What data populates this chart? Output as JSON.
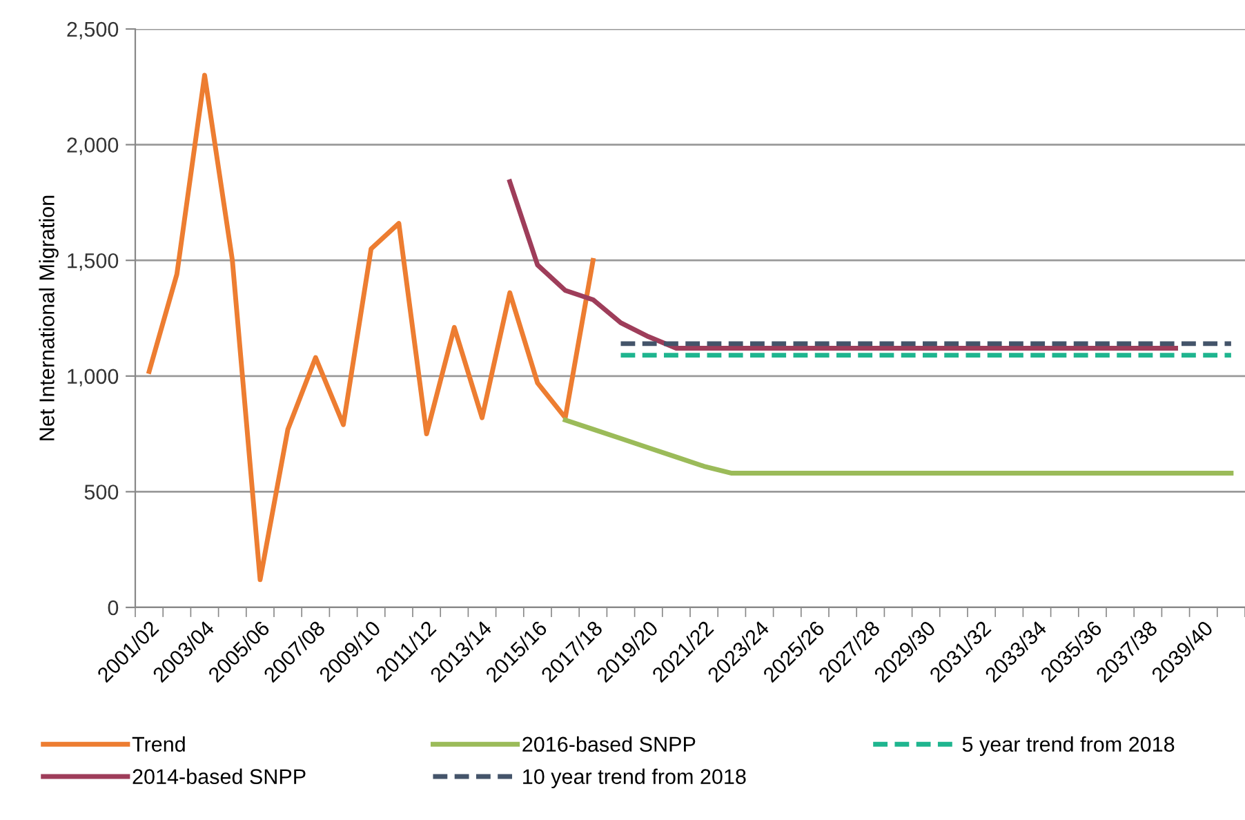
{
  "chart_data": {
    "type": "line",
    "ylabel": "Net International Migration",
    "categories": [
      "2001/02",
      null,
      "2003/04",
      null,
      "2005/06",
      null,
      "2007/08",
      null,
      "2009/10",
      null,
      "2011/12",
      null,
      "2013/14",
      null,
      "2015/16",
      null,
      "2017/18",
      null,
      "2019/20",
      null,
      "2021/22",
      null,
      "2023/24",
      null,
      "2025/26",
      null,
      "2027/28",
      null,
      "2029/30",
      null,
      "2031/32",
      null,
      "2033/34",
      null,
      "2035/36",
      null,
      "2037/38",
      null,
      "2039/40",
      null
    ],
    "series": [
      {
        "name": "Trend",
        "color": "#ed7d31",
        "values": [
          1020,
          1440,
          2300,
          1500,
          120,
          770,
          1080,
          790,
          1550,
          1660,
          750,
          1210,
          820,
          1360,
          970,
          820,
          1500,
          null,
          null,
          null,
          null,
          null,
          null,
          null,
          null,
          null,
          null,
          null,
          null,
          null,
          null,
          null,
          null,
          null,
          null,
          null,
          null,
          null,
          null,
          null
        ]
      },
      {
        "name": "2014-based SNPP",
        "color": "#9e3d5a",
        "values": [
          null,
          null,
          null,
          null,
          null,
          null,
          null,
          null,
          null,
          null,
          null,
          null,
          null,
          1840,
          1480,
          1370,
          1330,
          1230,
          1170,
          1120,
          1120,
          1120,
          1120,
          1120,
          1120,
          1120,
          1120,
          1120,
          1120,
          1120,
          1120,
          1120,
          1120,
          1120,
          1120,
          1120,
          1120,
          1120,
          null,
          null
        ]
      },
      {
        "name": "2016-based SNPP",
        "color": "#9bbb59",
        "values": [
          null,
          null,
          null,
          null,
          null,
          null,
          null,
          null,
          null,
          null,
          null,
          null,
          null,
          null,
          null,
          810,
          770,
          730,
          690,
          650,
          610,
          580,
          580,
          580,
          580,
          580,
          580,
          580,
          580,
          580,
          580,
          580,
          580,
          580,
          580,
          580,
          580,
          580,
          580,
          580
        ]
      },
      {
        "name": "10 year trend from 2018",
        "color": "#44546a",
        "line_style": "dashed",
        "values": [
          null,
          null,
          null,
          null,
          null,
          null,
          null,
          null,
          null,
          null,
          null,
          null,
          null,
          null,
          null,
          null,
          null,
          1140,
          1140,
          1140,
          1140,
          1140,
          1140,
          1140,
          1140,
          1140,
          1140,
          1140,
          1140,
          1140,
          1140,
          1140,
          1140,
          1140,
          1140,
          1140,
          1140,
          1140,
          1140,
          1140
        ]
      },
      {
        "name": "5 year trend from 2018",
        "color": "#1fb58f",
        "line_style": "dashed",
        "values": [
          null,
          null,
          null,
          null,
          null,
          null,
          null,
          null,
          null,
          null,
          null,
          null,
          null,
          null,
          null,
          null,
          null,
          1090,
          1090,
          1090,
          1090,
          1090,
          1090,
          1090,
          1090,
          1090,
          1090,
          1090,
          1090,
          1090,
          1090,
          1090,
          1090,
          1090,
          1090,
          1090,
          1090,
          1090,
          1090,
          1090
        ]
      }
    ],
    "ylim": [
      0,
      2500
    ],
    "yticks": [
      {
        "value": 0,
        "label": "0"
      },
      {
        "value": 500,
        "label": "500"
      },
      {
        "value": 1000,
        "label": "1,000"
      },
      {
        "value": 1500,
        "label": "1,500"
      },
      {
        "value": 2000,
        "label": "2,000"
      },
      {
        "value": 2500,
        "label": "2,500"
      }
    ],
    "grid": "y",
    "legend": "bottom",
    "line_style": "solid",
    "marker": "none"
  }
}
